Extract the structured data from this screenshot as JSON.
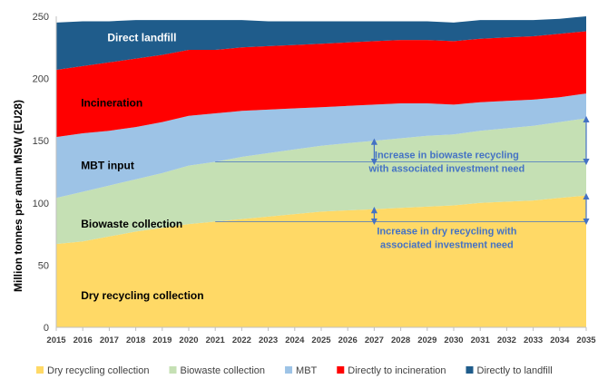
{
  "chart_data": {
    "type": "area",
    "stacked": true,
    "title": "",
    "ylabel": "Million tonnes per anum MSW (EU28)",
    "xlabel": "",
    "ylim": [
      0,
      250
    ],
    "yticks": [
      0,
      50,
      100,
      150,
      200,
      250
    ],
    "x": [
      "2015",
      "2016",
      "2017",
      "2018",
      "2019",
      "2020",
      "2021",
      "2022",
      "2023",
      "2024",
      "2025",
      "2026",
      "2027",
      "2028",
      "2029",
      "2030",
      "2031",
      "2032",
      "2033",
      "2034",
      "2035"
    ],
    "series": [
      {
        "name": "Dry recycling collection",
        "key": "dry",
        "color": "#FFD966",
        "values": [
          67,
          69,
          73,
          77,
          80,
          83,
          85,
          87,
          89,
          91,
          93,
          94,
          95,
          96,
          97,
          98,
          100,
          101,
          102,
          104,
          106
        ]
      },
      {
        "name": "Biowaste collection",
        "key": "bio",
        "color": "#C5E0B4",
        "values": [
          37,
          40,
          41,
          42,
          44,
          47,
          48,
          50,
          51,
          52,
          53,
          54,
          55,
          56,
          57,
          57,
          58,
          59,
          60,
          61,
          62
        ]
      },
      {
        "name": "MBT",
        "key": "mbt",
        "color": "#9DC3E6",
        "values": [
          49,
          47,
          44,
          42,
          41,
          40,
          39,
          37,
          35,
          33,
          31,
          30,
          29,
          28,
          26,
          24,
          23,
          22,
          21,
          20,
          20
        ]
      },
      {
        "name": "Directly to incineration",
        "key": "inc",
        "color": "#FF0000",
        "values": [
          54,
          54,
          55,
          55,
          54,
          53,
          51,
          51,
          51,
          51,
          51,
          51,
          51,
          51,
          51,
          51,
          51,
          51,
          51,
          51,
          50
        ]
      },
      {
        "name": "Directly to landfill",
        "key": "lf",
        "color": "#1F5C8B",
        "values": [
          38,
          36,
          33,
          31,
          28,
          24,
          24,
          22,
          20,
          19,
          18,
          17,
          16,
          15,
          15,
          15,
          15,
          14,
          13,
          12,
          12
        ]
      }
    ],
    "area_labels": [
      {
        "text": "Direct landfill",
        "series": "lf",
        "color": "#ffffff"
      },
      {
        "text": "Incineration",
        "series": "inc",
        "color": "#000000"
      },
      {
        "text": "MBT input",
        "series": "mbt",
        "color": "#000000"
      },
      {
        "text": "Biowaste collection",
        "series": "bio",
        "color": "#000000"
      },
      {
        "text": "Dry recycling collection",
        "series": "dry",
        "color": "#000000"
      }
    ],
    "annotations": [
      {
        "key": "bio",
        "lines": [
          "Increase in biowaste recycling",
          "with associated investment need"
        ],
        "color": "#4472C4",
        "from_year": "2021",
        "baseline_value": 133
      },
      {
        "key": "dry",
        "lines": [
          "Increase in dry recycling with",
          "associated investment need"
        ],
        "color": "#4472C4",
        "from_year": "2021",
        "baseline_value": 85
      }
    ],
    "legend_position": "bottom",
    "grid": false
  }
}
